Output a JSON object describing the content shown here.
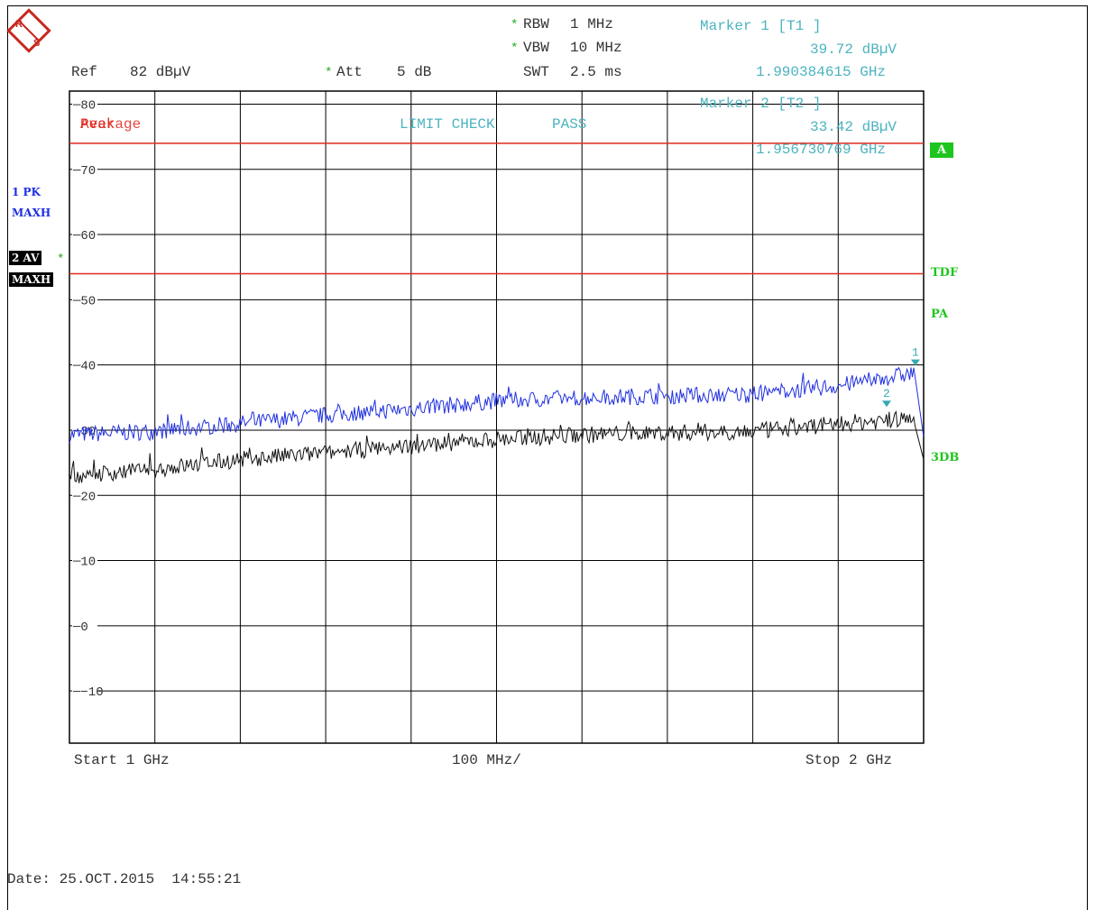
{
  "header": {
    "rbw_label": "RBW",
    "rbw_value": "1 MHz",
    "vbw_label": "VBW",
    "vbw_value": "10 MHz",
    "swt_label": "SWT",
    "swt_value": "2.5 ms",
    "ref_label": "Ref",
    "ref_value": "82 dBµV",
    "att_label": "Att",
    "att_value": "5 dB"
  },
  "markers": [
    {
      "label": "Marker 1 [T1 ]",
      "level": "39.72 dBµV",
      "freq": "1.990384615 GHz",
      "x_ghz": 1.990384615,
      "y": 39.72,
      "num": "1"
    },
    {
      "label": "Marker 2 [T2 ]",
      "level": "33.42 dBµV",
      "freq": "1.956730769 GHz",
      "x_ghz": 1.956730769,
      "y": 33.42,
      "num": "2"
    }
  ],
  "overlay": {
    "limit_title": "Average",
    "limit_title_overlap": "Peak",
    "limit_check": "LIMIT CHECK",
    "limit_result": "PASS"
  },
  "left_labels": {
    "trace1_a": "1 PK",
    "trace1_b": "MAXH",
    "trace2_a": "2 AV",
    "trace2_b": "MAXH"
  },
  "right_labels": {
    "a": "A",
    "tdf": "TDF",
    "pa": "PA",
    "db3": "3DB"
  },
  "footer": {
    "start": "Start 1 GHz",
    "span": "100 MHz/",
    "stop": "Stop 2 GHz",
    "date": "Date: 25.OCT.2015  14:55:21"
  },
  "colors": {
    "peak": "#1f2fe0",
    "avg": "#111111",
    "limit": "#e0281e",
    "grid": "#000000",
    "marker": "#36a9b3",
    "status": "#1ec51e"
  },
  "chart_data": {
    "type": "line",
    "xlabel": "",
    "ylabel": "",
    "xlim": [
      1.0,
      2.0
    ],
    "ylim": [
      -18,
      82
    ],
    "yticks": [
      80,
      70,
      60,
      50,
      40,
      30,
      20,
      10,
      0,
      -10
    ],
    "ytick_labels": [
      "80",
      "70",
      "60",
      "50",
      "40",
      "30",
      "20",
      "10",
      "0",
      "-10"
    ],
    "x_divisions": 10,
    "limit_lines": [
      {
        "name": "Peak",
        "y": 74
      },
      {
        "name": "Average",
        "y": 54
      }
    ],
    "series": [
      {
        "name": "1 PK MAXH",
        "x": [
          1.0,
          1.1,
          1.2,
          1.3,
          1.4,
          1.5,
          1.6,
          1.7,
          1.8,
          1.9,
          1.99,
          2.0
        ],
        "values": [
          29.3,
          29.8,
          31.0,
          32.3,
          33.3,
          34.5,
          35.0,
          35.3,
          35.5,
          36.8,
          38.8,
          29.0
        ]
      },
      {
        "name": "2 AV MAXH",
        "x": [
          1.0,
          1.1,
          1.2,
          1.3,
          1.4,
          1.5,
          1.6,
          1.7,
          1.8,
          1.9,
          1.99,
          2.0
        ],
        "values": [
          23.0,
          24.0,
          25.5,
          26.5,
          27.6,
          28.6,
          29.3,
          29.6,
          29.8,
          31.0,
          31.8,
          25.5
        ]
      }
    ]
  }
}
